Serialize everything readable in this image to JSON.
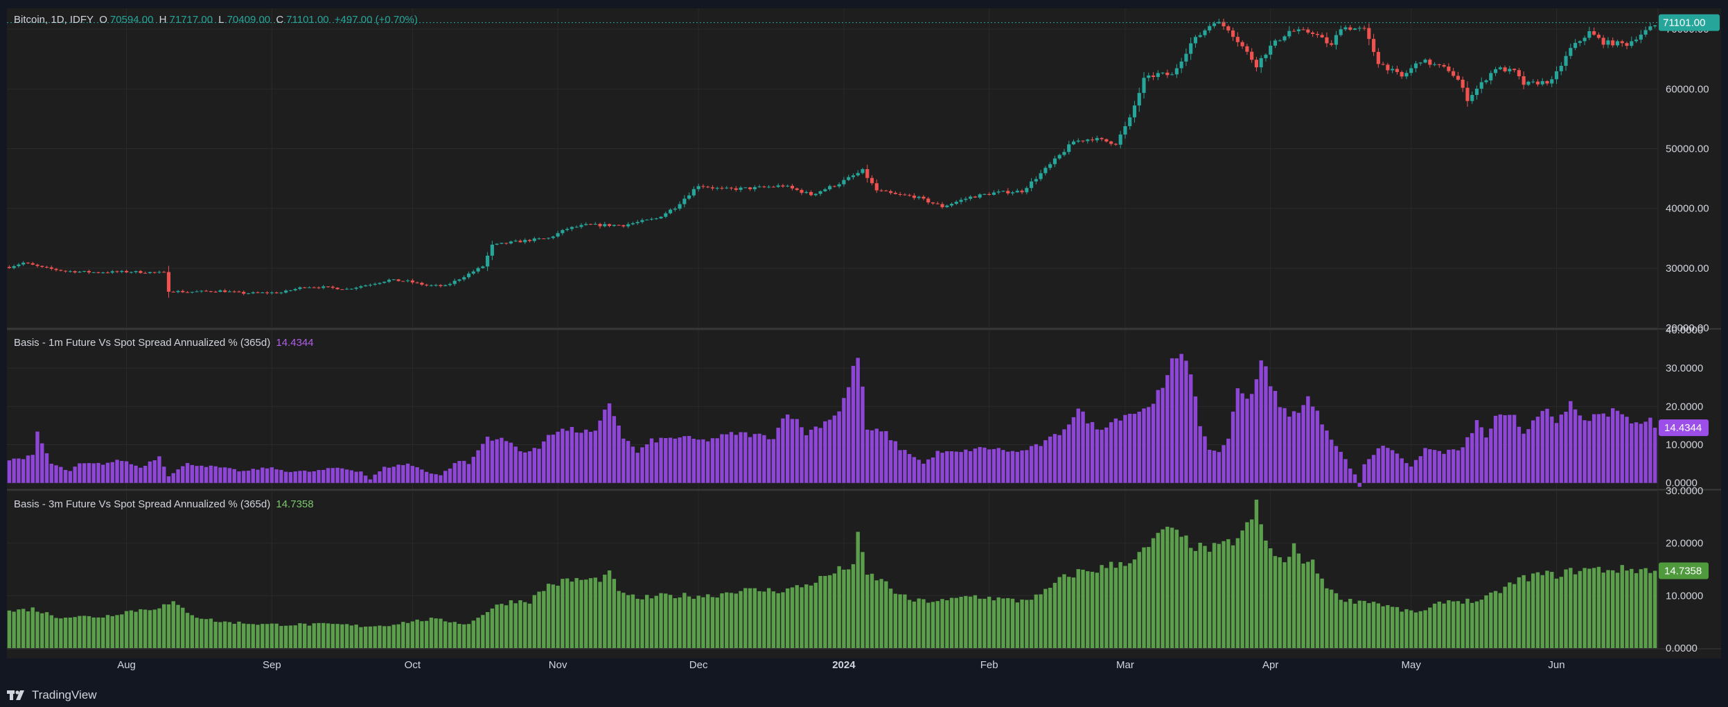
{
  "header": {
    "symbol": "Bitcoin, 1D, IDFY",
    "open_label": "O",
    "open": "70594.00",
    "high_label": "H",
    "high": "71717.00",
    "low_label": "L",
    "low": "70409.00",
    "close_label": "C",
    "close": "71101.00",
    "change": "+497.00 (+0.70%)"
  },
  "colors": {
    "background": "#1e1e1e",
    "up": "#26a69a",
    "down": "#ef5350",
    "purple": "#8e46d6",
    "green": "#5b9e4b",
    "price_label_bg": "#26a69a",
    "purple_label_bg": "#9c4ee8",
    "green_label_bg": "#4e9a3c"
  },
  "branding": {
    "logo_text": "TradingView"
  },
  "chart_data": [
    {
      "type": "candlestick",
      "title": "Bitcoin, 1D, IDFY",
      "y_ticks": [
        "70000.00",
        "60000.00",
        "50000.00",
        "40000.00",
        "30000.00",
        "20000.00"
      ],
      "y_tick_values": [
        70000,
        60000,
        50000,
        40000,
        30000,
        20000
      ],
      "ylim": [
        20000,
        73500
      ],
      "last_price_label": "71101.00",
      "last_price": 71101,
      "x_tick_labels": [
        "Aug",
        "Sep",
        "Oct",
        "Nov",
        "Dec",
        "2024",
        "Feb",
        "Mar",
        "Apr",
        "May",
        "Jun"
      ],
      "x_tick_days": [
        18,
        49,
        79,
        110,
        140,
        171,
        202,
        231,
        262,
        292,
        323
      ],
      "first_day_offset": -7,
      "anchors_close": [
        [
          0,
          30200
        ],
        [
          3,
          30900
        ],
        [
          7,
          30100
        ],
        [
          12,
          29500
        ],
        [
          18,
          29300
        ],
        [
          26,
          29400
        ],
        [
          33,
          29200
        ],
        [
          34,
          26200
        ],
        [
          38,
          26000
        ],
        [
          45,
          26200
        ],
        [
          50,
          25800
        ],
        [
          58,
          25900
        ],
        [
          63,
          26900
        ],
        [
          67,
          26800
        ],
        [
          72,
          26500
        ],
        [
          77,
          27300
        ],
        [
          81,
          28000
        ],
        [
          85,
          27800
        ],
        [
          89,
          27100
        ],
        [
          93,
          27000
        ],
        [
          96,
          28200
        ],
        [
          101,
          30300
        ],
        [
          103,
          33800
        ],
        [
          107,
          34300
        ],
        [
          111,
          34700
        ],
        [
          115,
          35000
        ],
        [
          119,
          36600
        ],
        [
          123,
          37200
        ],
        [
          131,
          37200
        ],
        [
          138,
          38300
        ],
        [
          142,
          40200
        ],
        [
          147,
          43900
        ],
        [
          152,
          43200
        ],
        [
          159,
          43400
        ],
        [
          165,
          43800
        ],
        [
          171,
          42300
        ],
        [
          177,
          44200
        ],
        [
          182,
          46300
        ],
        [
          185,
          43000
        ],
        [
          189,
          42300
        ],
        [
          193,
          42000
        ],
        [
          199,
          40300
        ],
        [
          205,
          41900
        ],
        [
          210,
          42600
        ],
        [
          216,
          42900
        ],
        [
          222,
          47300
        ],
        [
          227,
          51200
        ],
        [
          231,
          51700
        ],
        [
          236,
          50900
        ],
        [
          239,
          55000
        ],
        [
          242,
          61600
        ],
        [
          245,
          62500
        ],
        [
          248,
          62300
        ],
        [
          252,
          67600
        ],
        [
          257,
          71400
        ],
        [
          260,
          70100
        ],
        [
          263,
          67100
        ],
        [
          266,
          64000
        ],
        [
          269,
          67100
        ],
        [
          273,
          69700
        ],
        [
          278,
          69500
        ],
        [
          282,
          67200
        ],
        [
          284,
          70400
        ],
        [
          289,
          69900
        ],
        [
          292,
          64500
        ],
        [
          297,
          62000
        ],
        [
          301,
          64800
        ],
        [
          307,
          63200
        ],
        [
          309,
          61500
        ],
        [
          311,
          58300
        ],
        [
          317,
          63500
        ],
        [
          321,
          62900
        ],
        [
          323,
          60800
        ],
        [
          329,
          61300
        ],
        [
          333,
          66700
        ],
        [
          337,
          69500
        ],
        [
          340,
          67800
        ],
        [
          345,
          67500
        ],
        [
          348,
          69200
        ],
        [
          352,
          71101
        ]
      ],
      "candles_count": 352
    },
    {
      "type": "bar",
      "title": "Basis - 1m Future Vs Spot Spread Annualized % (365d)",
      "value_label": "14.4344",
      "last_value": 14.4344,
      "y_ticks": [
        "40.0000",
        "30.0000",
        "20.0000",
        "10.0000",
        "0.0000"
      ],
      "y_tick_values": [
        40,
        30,
        20,
        10,
        0
      ],
      "ylim": [
        -1.5,
        40
      ],
      "anchors": [
        [
          0,
          6
        ],
        [
          5,
          7
        ],
        [
          6,
          13
        ],
        [
          9,
          5
        ],
        [
          13,
          3
        ],
        [
          15,
          5
        ],
        [
          20,
          5
        ],
        [
          24,
          6
        ],
        [
          28,
          4
        ],
        [
          32,
          7
        ],
        [
          34,
          2
        ],
        [
          38,
          5
        ],
        [
          45,
          4
        ],
        [
          50,
          3
        ],
        [
          55,
          4
        ],
        [
          60,
          3
        ],
        [
          65,
          3
        ],
        [
          70,
          4
        ],
        [
          75,
          3
        ],
        [
          77,
          1
        ],
        [
          80,
          4
        ],
        [
          85,
          5
        ],
        [
          89,
          3
        ],
        [
          92,
          2
        ],
        [
          96,
          6
        ],
        [
          98,
          5
        ],
        [
          102,
          12
        ],
        [
          106,
          11
        ],
        [
          110,
          8
        ],
        [
          113,
          9
        ],
        [
          115,
          13
        ],
        [
          119,
          14
        ],
        [
          125,
          13
        ],
        [
          128,
          21
        ],
        [
          131,
          12
        ],
        [
          134,
          8
        ],
        [
          137,
          11
        ],
        [
          143,
          12
        ],
        [
          148,
          11
        ],
        [
          155,
          13
        ],
        [
          163,
          12
        ],
        [
          166,
          19
        ],
        [
          170,
          13
        ],
        [
          174,
          16
        ],
        [
          177,
          19
        ],
        [
          179,
          25
        ],
        [
          181,
          34
        ],
        [
          183,
          14
        ],
        [
          187,
          13
        ],
        [
          190,
          9
        ],
        [
          193,
          7
        ],
        [
          195,
          5
        ],
        [
          198,
          8
        ],
        [
          203,
          8
        ],
        [
          206,
          9
        ],
        [
          210,
          9
        ],
        [
          215,
          8
        ],
        [
          220,
          10
        ],
        [
          224,
          13
        ],
        [
          228,
          19
        ],
        [
          232,
          14
        ],
        [
          238,
          18
        ],
        [
          242,
          19
        ],
        [
          244,
          22
        ],
        [
          246,
          24
        ],
        [
          248,
          31
        ],
        [
          250,
          35
        ],
        [
          252,
          30
        ],
        [
          254,
          14
        ],
        [
          256,
          9
        ],
        [
          258,
          8
        ],
        [
          260,
          12
        ],
        [
          262,
          24
        ],
        [
          265,
          23
        ],
        [
          267,
          33
        ],
        [
          269,
          25
        ],
        [
          273,
          17
        ],
        [
          277,
          22
        ],
        [
          281,
          14
        ],
        [
          283,
          10
        ],
        [
          285,
          6
        ],
        [
          287,
          2
        ],
        [
          288,
          -1
        ],
        [
          289,
          5
        ],
        [
          293,
          10
        ],
        [
          296,
          8
        ],
        [
          299,
          4
        ],
        [
          302,
          9
        ],
        [
          306,
          8
        ],
        [
          310,
          9
        ],
        [
          313,
          16
        ],
        [
          315,
          12
        ],
        [
          317,
          17
        ],
        [
          321,
          17
        ],
        [
          323,
          13
        ],
        [
          327,
          20
        ],
        [
          330,
          15
        ],
        [
          333,
          21
        ],
        [
          335,
          17
        ],
        [
          339,
          17
        ],
        [
          343,
          19
        ],
        [
          347,
          15
        ],
        [
          350,
          18
        ],
        [
          352,
          14.4344
        ]
      ]
    },
    {
      "type": "bar",
      "title": "Basis - 3m Future Vs Spot Spread Annualized % (365d)",
      "value_label": "14.7358",
      "last_value": 14.7358,
      "y_ticks": [
        "30.0000",
        "20.0000",
        "10.0000",
        "0.0000"
      ],
      "y_tick_values": [
        30,
        20,
        10,
        0
      ],
      "ylim": [
        0,
        30
      ],
      "anchors": [
        [
          0,
          7
        ],
        [
          5,
          7.5
        ],
        [
          10,
          6
        ],
        [
          15,
          6
        ],
        [
          20,
          6
        ],
        [
          25,
          7
        ],
        [
          30,
          7.5
        ],
        [
          35,
          8.5
        ],
        [
          40,
          6
        ],
        [
          45,
          5
        ],
        [
          50,
          4.8
        ],
        [
          55,
          4.5
        ],
        [
          60,
          4.5
        ],
        [
          65,
          4.5
        ],
        [
          70,
          4.5
        ],
        [
          75,
          4.2
        ],
        [
          80,
          4.3
        ],
        [
          85,
          5
        ],
        [
          90,
          5.5
        ],
        [
          95,
          5
        ],
        [
          98,
          4.5
        ],
        [
          100,
          6
        ],
        [
          105,
          8.5
        ],
        [
          108,
          9
        ],
        [
          111,
          9
        ],
        [
          115,
          12
        ],
        [
          120,
          13
        ],
        [
          125,
          13
        ],
        [
          128,
          14
        ],
        [
          131,
          10
        ],
        [
          135,
          9.5
        ],
        [
          140,
          10
        ],
        [
          145,
          10
        ],
        [
          150,
          10
        ],
        [
          155,
          11
        ],
        [
          160,
          11
        ],
        [
          165,
          11
        ],
        [
          170,
          12
        ],
        [
          175,
          14
        ],
        [
          180,
          16
        ],
        [
          181,
          21
        ],
        [
          183,
          14
        ],
        [
          186,
          13
        ],
        [
          190,
          10
        ],
        [
          193,
          9
        ],
        [
          196,
          9
        ],
        [
          200,
          9
        ],
        [
          205,
          10
        ],
        [
          210,
          9.5
        ],
        [
          215,
          9
        ],
        [
          220,
          10
        ],
        [
          224,
          13
        ],
        [
          228,
          14.5
        ],
        [
          232,
          15
        ],
        [
          236,
          16
        ],
        [
          240,
          17
        ],
        [
          244,
          20
        ],
        [
          246,
          23
        ],
        [
          248,
          22
        ],
        [
          250,
          21
        ],
        [
          252,
          20
        ],
        [
          254,
          19
        ],
        [
          258,
          19
        ],
        [
          262,
          21
        ],
        [
          264,
          23
        ],
        [
          266,
          27
        ],
        [
          268,
          20
        ],
        [
          270,
          18
        ],
        [
          272,
          16
        ],
        [
          274,
          19
        ],
        [
          276,
          17
        ],
        [
          278,
          16
        ],
        [
          281,
          12
        ],
        [
          283,
          10
        ],
        [
          286,
          9
        ],
        [
          290,
          9
        ],
        [
          294,
          8
        ],
        [
          298,
          7
        ],
        [
          302,
          7
        ],
        [
          306,
          9
        ],
        [
          310,
          9
        ],
        [
          314,
          9
        ],
        [
          318,
          11
        ],
        [
          322,
          13
        ],
        [
          326,
          14
        ],
        [
          330,
          14
        ],
        [
          335,
          15
        ],
        [
          340,
          15
        ],
        [
          345,
          15
        ],
        [
          350,
          15
        ],
        [
          352,
          14.7358
        ]
      ]
    }
  ]
}
